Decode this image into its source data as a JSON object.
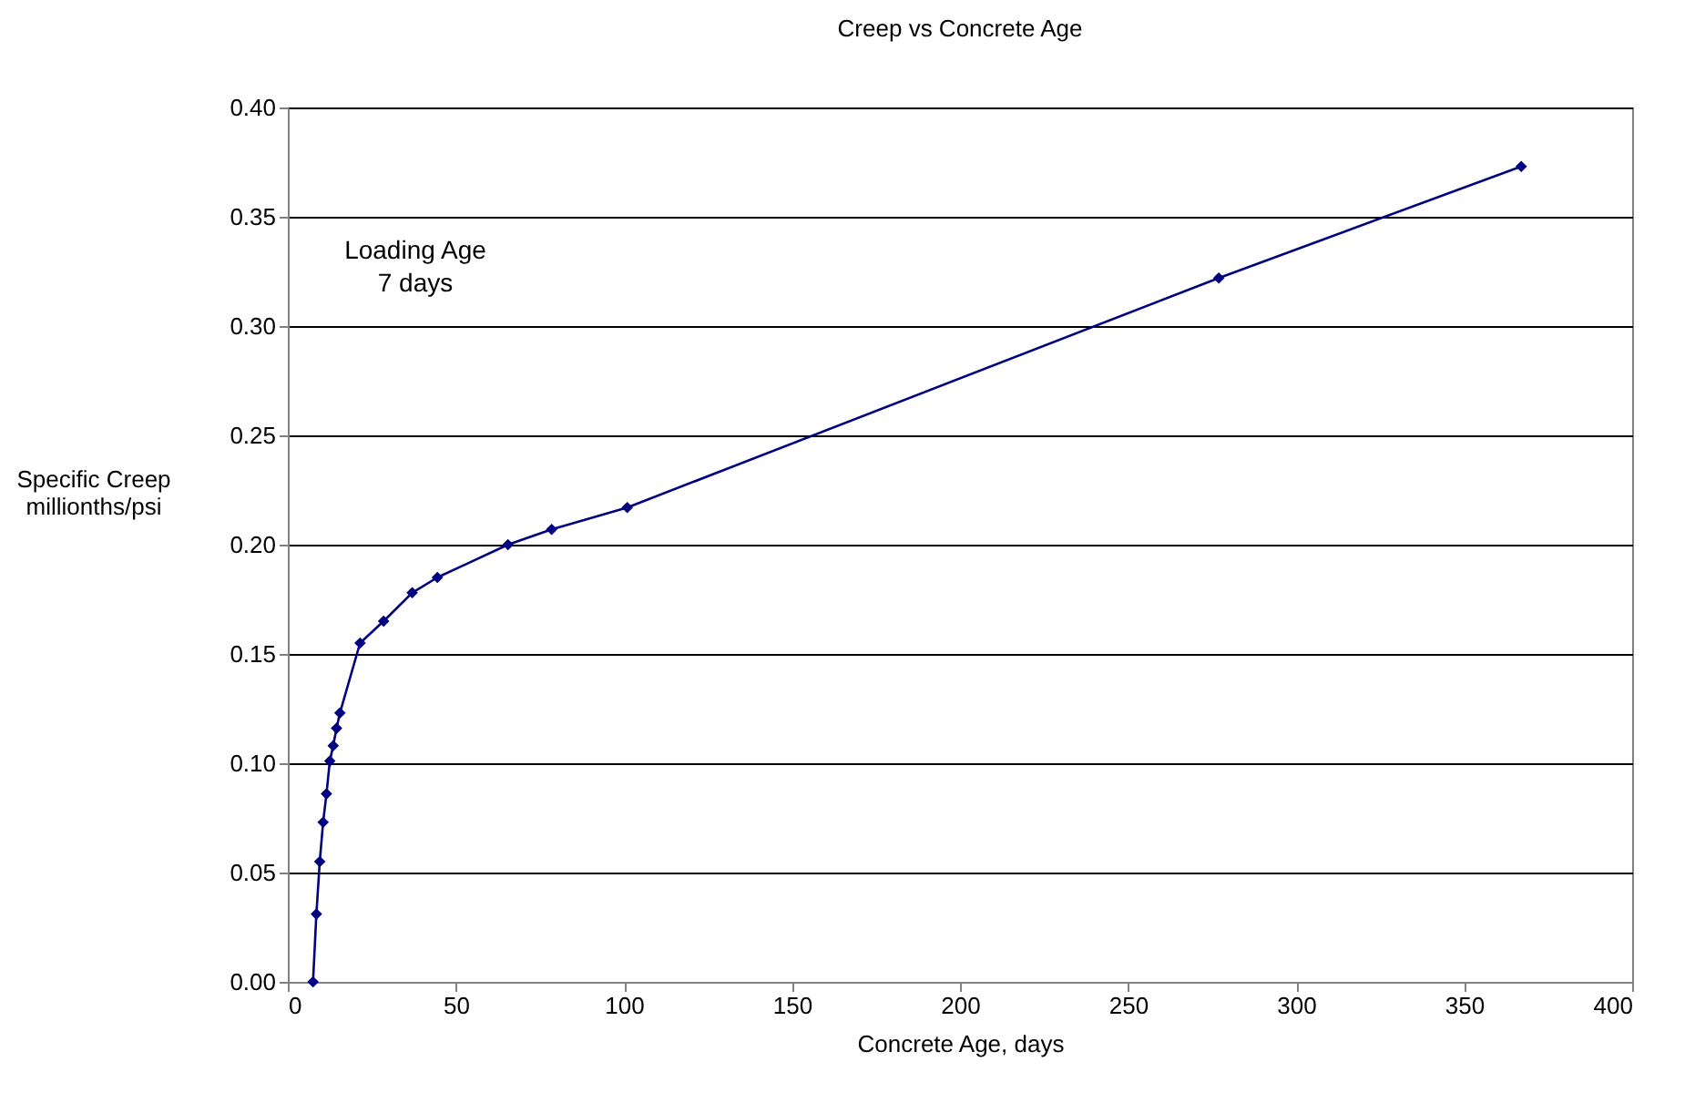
{
  "chart_data": {
    "type": "line",
    "title": "Creep vs Concrete Age",
    "xlabel": "Concrete Age, days",
    "ylabel": "Specific Creep\nmillionths/psi",
    "x": [
      7.5,
      8.5,
      9.5,
      10.5,
      11.5,
      12.5,
      13.5,
      14.5,
      15.5,
      21.5,
      28.5,
      37,
      44.5,
      65.5,
      78.5,
      101,
      277,
      367
    ],
    "series": [
      {
        "color": "#000080",
        "values": [
          0.0,
          0.031,
          0.055,
          0.073,
          0.086,
          0.101,
          0.108,
          0.116,
          0.123,
          0.155,
          0.165,
          0.178,
          0.185,
          0.2,
          0.207,
          0.217,
          0.322,
          0.373
        ]
      }
    ],
    "xlim": [
      0,
      400
    ],
    "xticks": [
      0,
      50,
      100,
      150,
      200,
      250,
      300,
      350,
      400
    ],
    "ylim": [
      0,
      0.4
    ],
    "yticks": [
      {
        "value": 0,
        "label": "0.00"
      },
      {
        "value": 0.05,
        "label": "0.05"
      },
      {
        "value": 0.1,
        "label": "0.10"
      },
      {
        "value": 0.15,
        "label": "0.15"
      },
      {
        "value": 0.2,
        "label": "0.20"
      },
      {
        "value": 0.25,
        "label": "0.25"
      },
      {
        "value": 0.3,
        "label": "0.30"
      },
      {
        "value": 0.35,
        "label": "0.35"
      },
      {
        "value": 0.4,
        "label": "0.40"
      }
    ],
    "grid": "y",
    "marker": "diamond",
    "line_style": "solid",
    "annotations": [
      "Loading Age\n7 days"
    ]
  }
}
